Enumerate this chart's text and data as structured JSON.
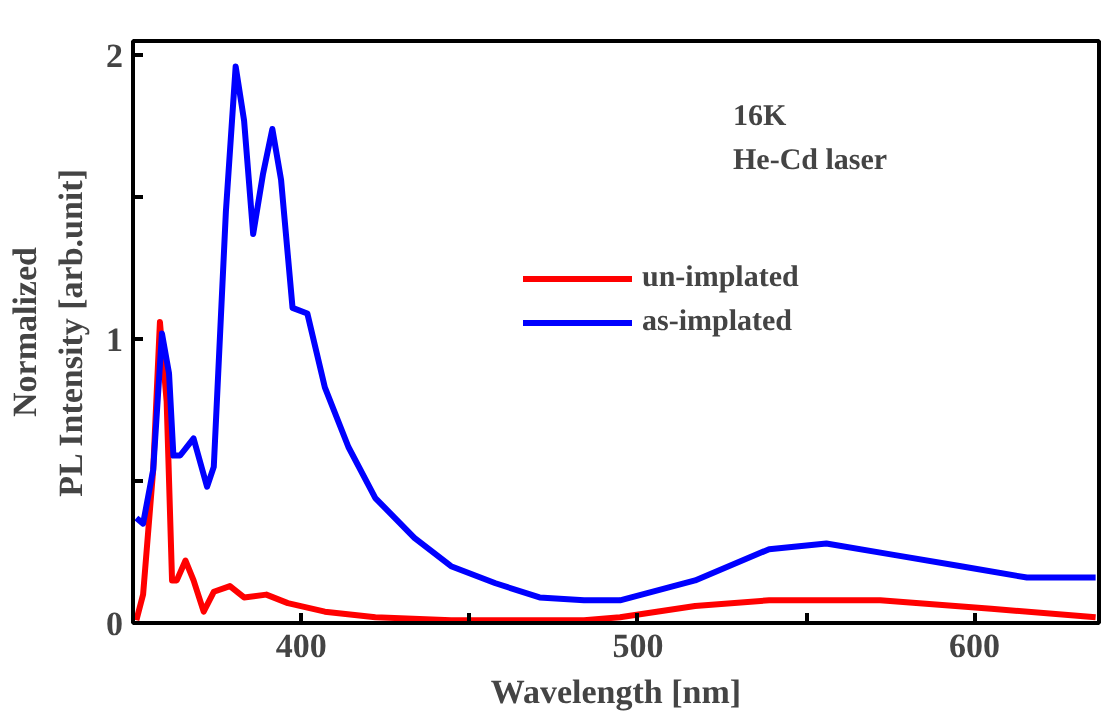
{
  "chart_data": {
    "type": "line",
    "xlabel": "Wavelength [nm]",
    "ylabel": "Normalized\nPL Intensity [arb.unit]",
    "annotations": [
      "16K",
      "He-Cd laser"
    ],
    "xlim": [
      350,
      637
    ],
    "ylim": [
      0,
      2.05
    ],
    "xticks": [
      400,
      {
        "value": 450,
        "label": null
      },
      500,
      {
        "value": 550,
        "label": null
      },
      600
    ],
    "yticks": [
      0,
      {
        "value": 0.5,
        "label": null
      },
      1,
      {
        "value": 1.5,
        "label": null
      },
      2
    ],
    "grid": false,
    "legend": "right",
    "marker": "none",
    "line_style": "solid",
    "series": [
      {
        "name": "un-implated",
        "color": "#ff0000",
        "x": [
          351,
          353,
          356,
          358,
          360,
          361.6,
          363,
          365.6,
          368,
          371,
          374,
          378.8,
          383,
          389.6,
          396,
          407,
          422,
          444.5,
          484,
          494.7,
          517,
          539,
          572,
          605,
          636
        ],
        "values": [
          0.01,
          0.1,
          0.54,
          1.06,
          0.78,
          0.15,
          0.15,
          0.22,
          0.15,
          0.04,
          0.11,
          0.13,
          0.09,
          0.1,
          0.07,
          0.04,
          0.02,
          0.01,
          0.01,
          0.02,
          0.06,
          0.08,
          0.08,
          0.05,
          0.02
        ]
      },
      {
        "name": "as-implated",
        "color": "#0000ff",
        "x": [
          351,
          353,
          356,
          358.6,
          360.7,
          362,
          364,
          368,
          372,
          374,
          377.6,
          380.5,
          383,
          385.7,
          388.6,
          391.4,
          394,
          397.4,
          401.8,
          407,
          414,
          422,
          433.6,
          444.5,
          457.7,
          470.8,
          484,
          494.7,
          517,
          539,
          556,
          576,
          596,
          615.6,
          636
        ],
        "values": [
          0.37,
          0.35,
          0.54,
          1.02,
          0.88,
          0.59,
          0.59,
          0.65,
          0.48,
          0.55,
          1.45,
          1.96,
          1.77,
          1.37,
          1.58,
          1.74,
          1.56,
          1.11,
          1.09,
          0.83,
          0.62,
          0.44,
          0.3,
          0.2,
          0.14,
          0.09,
          0.08,
          0.08,
          0.15,
          0.26,
          0.28,
          0.24,
          0.2,
          0.16,
          0.16
        ]
      }
    ]
  }
}
